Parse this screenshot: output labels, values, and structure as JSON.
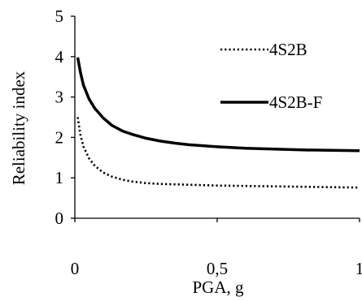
{
  "chart_data": {
    "type": "line",
    "title": "",
    "xlabel": "PGA, g",
    "ylabel": "Reliability index",
    "xlim": [
      0,
      1
    ],
    "ylim": [
      0,
      5
    ],
    "x_ticks": [
      {
        "value": 0,
        "label": "0"
      },
      {
        "value": 0.5,
        "label": "0,5"
      },
      {
        "value": 1,
        "label": "1"
      }
    ],
    "y_ticks": [
      {
        "value": 0,
        "label": "0"
      },
      {
        "value": 1,
        "label": "1"
      },
      {
        "value": 2,
        "label": "2"
      },
      {
        "value": 3,
        "label": "3"
      },
      {
        "value": 4,
        "label": "4"
      },
      {
        "value": 5,
        "label": "5"
      }
    ],
    "grid": false,
    "legend_position": "right",
    "series": [
      {
        "name": "4S2B",
        "style": "dotted",
        "color": "#000000",
        "x": [
          0.01,
          0.02,
          0.03,
          0.05,
          0.07,
          0.1,
          0.13,
          0.17,
          0.2,
          0.25,
          0.3,
          0.35,
          0.4,
          0.5,
          0.6,
          0.7,
          0.8,
          0.9,
          1.0
        ],
        "y": [
          2.5,
          2.05,
          1.78,
          1.48,
          1.3,
          1.13,
          1.03,
          0.95,
          0.91,
          0.87,
          0.85,
          0.84,
          0.83,
          0.81,
          0.8,
          0.79,
          0.78,
          0.77,
          0.76
        ]
      },
      {
        "name": "4S2B-F",
        "style": "solid",
        "color": "#000000",
        "x": [
          0.01,
          0.02,
          0.03,
          0.05,
          0.07,
          0.1,
          0.13,
          0.17,
          0.2,
          0.25,
          0.3,
          0.35,
          0.4,
          0.5,
          0.6,
          0.7,
          0.8,
          0.9,
          1.0
        ],
        "y": [
          3.98,
          3.6,
          3.3,
          2.95,
          2.72,
          2.48,
          2.3,
          2.15,
          2.08,
          1.98,
          1.91,
          1.86,
          1.82,
          1.77,
          1.73,
          1.71,
          1.69,
          1.68,
          1.67
        ]
      }
    ]
  }
}
